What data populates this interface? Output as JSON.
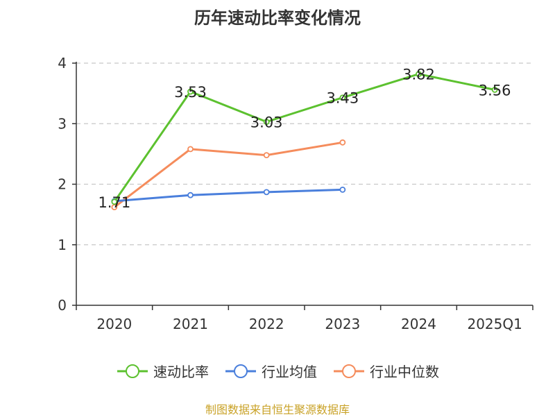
{
  "title": "历年速动比率变化情况",
  "source": "制图数据来自恒生聚源数据库",
  "colors": {
    "quick_ratio": "#5cc12f",
    "industry_avg": "#4a7fdc",
    "industry_median": "#f58c5c",
    "axis": "#333333",
    "grid": "#c8c8c8",
    "source": "#c9a227"
  },
  "chart_data": {
    "type": "line",
    "title": "历年速动比率变化情况",
    "xlabel": "",
    "ylabel": "",
    "categories": [
      "2020",
      "2021",
      "2022",
      "2023",
      "2024",
      "2025Q1"
    ],
    "ylim": [
      0,
      4
    ],
    "yticks": [
      0,
      1,
      2,
      3,
      4
    ],
    "grid": "horizontal-dashed",
    "legend_position": "bottom",
    "series": [
      {
        "name": "速动比率",
        "color_key": "quick_ratio",
        "values": [
          1.71,
          3.53,
          3.03,
          3.43,
          3.82,
          3.56
        ],
        "show_labels": true,
        "labels": [
          "1.71",
          "3.53",
          "3.03",
          "3.43",
          "3.82",
          "3.56"
        ]
      },
      {
        "name": "行业均值",
        "color_key": "industry_avg",
        "values": [
          1.72,
          1.82,
          1.87,
          1.91,
          null,
          null
        ],
        "show_labels": false
      },
      {
        "name": "行业中位数",
        "color_key": "industry_median",
        "values": [
          1.62,
          2.58,
          2.48,
          2.69,
          null,
          null
        ],
        "show_labels": false
      }
    ]
  }
}
